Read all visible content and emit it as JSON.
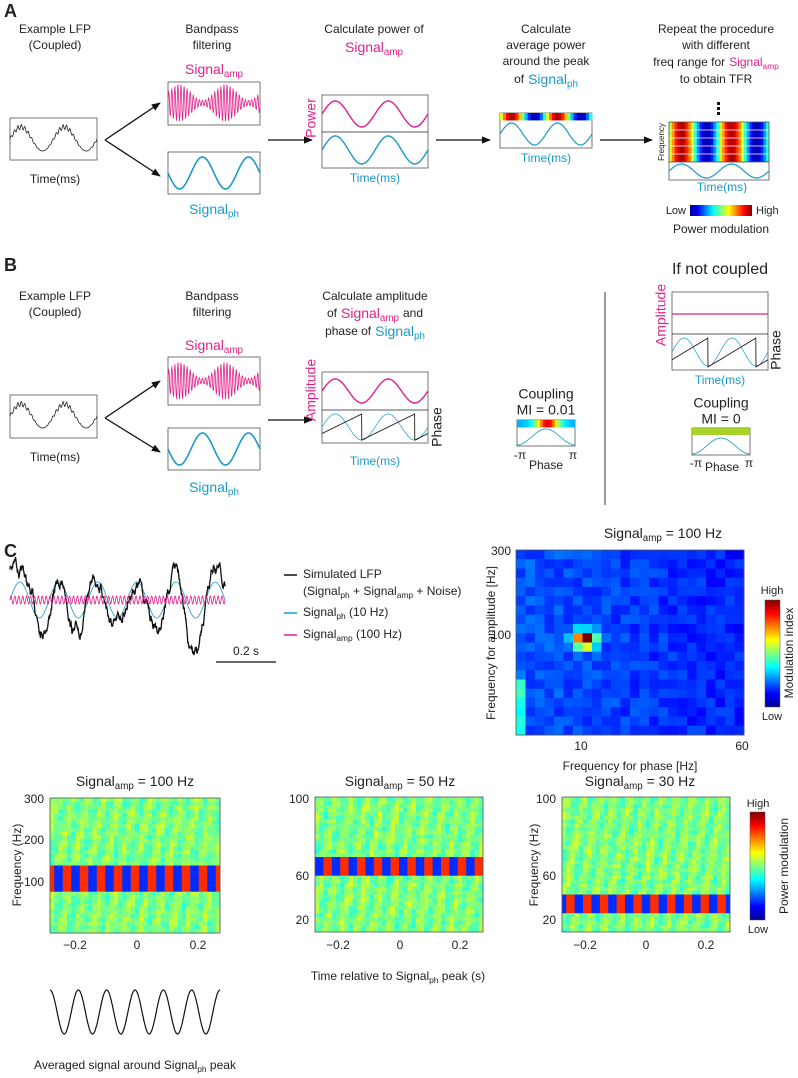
{
  "panel_a": {
    "label": "A",
    "lfp": {
      "title": [
        "Example LFP",
        "(Coupled)"
      ],
      "xlabel": "Time(ms)"
    },
    "filter": {
      "title": [
        "Bandpass",
        "filtering"
      ],
      "signal_amp": [
        "Signal",
        "amp"
      ],
      "signal_ph": [
        "Signal",
        "ph"
      ]
    },
    "power": {
      "title": "Calculate power of",
      "signal_amp": [
        "Signal",
        "amp"
      ],
      "ylabel": "Power",
      "xlabel": "Time(ms)"
    },
    "average": {
      "title": [
        "Calculate",
        "average power",
        "around the peak"
      ],
      "prefix": "of",
      "signal_ph": [
        "Signal",
        "ph"
      ],
      "xlabel": "Time(ms)"
    },
    "repeat": {
      "title": [
        "Repeat the procedure",
        "with different"
      ],
      "prefix": "freq range for",
      "signal_amp": [
        "Signal",
        "amp"
      ],
      "title_end": "to obtain TFR",
      "ylabel": "Frequency",
      "xlabel": "Time(ms)",
      "colorbar_low": "Low",
      "colorbar_high": "High",
      "colorbar_label": "Power modulation"
    }
  },
  "panel_b": {
    "label": "B",
    "lfp": {
      "title": [
        "Example LFP",
        "(Coupled)"
      ],
      "xlabel": "Time(ms)"
    },
    "filter": {
      "title": [
        "Bandpass",
        "filtering"
      ],
      "signal_amp": [
        "Signal",
        "amp"
      ],
      "signal_ph": [
        "Signal",
        "ph"
      ]
    },
    "amplitude": {
      "title": "Calculate amplitude",
      "prefix_1": "of",
      "signal_amp": [
        "Signal",
        "amp"
      ],
      "suffix_1": "and",
      "prefix_2": "phase of",
      "signal_ph": [
        "Signal",
        "ph"
      ],
      "ylabel": "Amplitude",
      "y2label": "Phase",
      "xlabel": "Time(ms)"
    },
    "coupling": {
      "title": "Coupling",
      "mi": "MI = 0.01",
      "xtick_left": "-π",
      "xtick_right": "π",
      "xlabel": "Phase"
    },
    "not_coupled": {
      "title": "If not coupled",
      "ylabel": "Amplitude",
      "y2label": "Phase",
      "xlabel": "Time(ms)",
      "coupling": {
        "title": "Coupling",
        "mi": "MI = 0",
        "xtick_left": "-π",
        "xtick_right": "π",
        "xlabel": "Phase"
      }
    }
  },
  "panel_c": {
    "label": "C",
    "legend": {
      "lfp": "Simulated LFP",
      "lfp_detail": [
        "(Signal",
        "ph",
        " + Signal",
        "amp",
        " + Noise)"
      ],
      "signal_ph": [
        "Signal",
        "ph",
        " (10 Hz)"
      ],
      "signal_amp": [
        "Signal",
        "amp",
        " (100 Hz)"
      ]
    },
    "scale_bar": "0.2 s",
    "comodulogram": {
      "title": [
        "Signal",
        "amp",
        " = 100 Hz"
      ],
      "ylabel": "Frequency for amplitude [Hz]",
      "xlabel": "Frequency for phase [Hz]",
      "yticks": [
        "300",
        "100"
      ],
      "xticks": [
        "10",
        "60"
      ],
      "colorbar_high": "High",
      "colorbar_low": "Low",
      "colorbar_label": "Modulation index"
    },
    "tfr": [
      {
        "title": [
          "Signal",
          "amp",
          " = 100 Hz"
        ],
        "ylabel": "Frequency (Hz)",
        "yticks": [
          "300",
          "200",
          "100"
        ],
        "xticks": [
          "−0.2",
          "0",
          "0.2"
        ]
      },
      {
        "title": [
          "Signal",
          "amp",
          " = 50 Hz"
        ],
        "yticks": [
          "100",
          "60",
          "20"
        ],
        "xticks": [
          "−0.2",
          "0",
          "0.2"
        ]
      },
      {
        "title": [
          "Signal",
          "amp",
          " = 30 Hz"
        ],
        "ylabel": "Frequency (Hz)",
        "yticks": [
          "100",
          "60",
          "20"
        ],
        "xticks": [
          "−0.2",
          "0",
          "0.2"
        ]
      }
    ],
    "tfr_xlabel": [
      "Time relative to Signal",
      "ph",
      " peak (s)"
    ],
    "tfr_colorbar": {
      "high": "High",
      "low": "Low",
      "label": "Power modulation"
    },
    "averaged_caption": [
      "Averaged signal around Signal",
      "ph",
      " peak"
    ]
  }
}
